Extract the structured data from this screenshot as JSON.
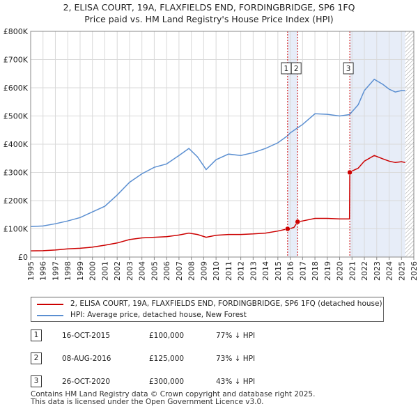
{
  "title_line1": "2, ELISA COURT, 19A, FLAXFIELDS END, FORDINGBRIDGE, SP6 1FQ",
  "title_line2": "Price paid vs. HM Land Registry's House Price Index (HPI)",
  "chart_data": {
    "type": "line",
    "title": "2, ELISA COURT, 19A, FLAXFIELDS END, FORDINGBRIDGE, SP6 1FQ - Price paid vs. HM Land Registry's House Price Index (HPI)",
    "xlim": [
      1995,
      2026
    ],
    "ylim": [
      0,
      800000
    ],
    "x_ticks": [
      "1995",
      "1996",
      "1997",
      "1998",
      "1999",
      "2000",
      "2001",
      "2002",
      "2003",
      "2004",
      "2005",
      "2006",
      "2007",
      "2008",
      "2009",
      "2010",
      "2011",
      "2012",
      "2013",
      "2014",
      "2015",
      "2016",
      "2017",
      "2018",
      "2019",
      "2020",
      "2021",
      "2022",
      "2023",
      "2024",
      "2025",
      "2026"
    ],
    "y_ticks": [
      {
        "value": 0,
        "label": "£0"
      },
      {
        "value": 100000,
        "label": "£100K"
      },
      {
        "value": 200000,
        "label": "£200K"
      },
      {
        "value": 300000,
        "label": "£300K"
      },
      {
        "value": 400000,
        "label": "£400K"
      },
      {
        "value": 500000,
        "label": "£500K"
      },
      {
        "value": 600000,
        "label": "£600K"
      },
      {
        "value": 700000,
        "label": "£700K"
      },
      {
        "value": 800000,
        "label": "£800K"
      }
    ],
    "series": [
      {
        "name": "2, ELISA COURT, 19A, FLAXFIELDS END, FORDINGBRIDGE, SP6 1FQ (detached house)",
        "color": "#cc0000",
        "points": [
          [
            1995,
            22000
          ],
          [
            1996,
            22500
          ],
          [
            1997,
            25000
          ],
          [
            1998,
            29000
          ],
          [
            1999,
            31000
          ],
          [
            2000,
            35000
          ],
          [
            2001,
            42000
          ],
          [
            2002,
            50000
          ],
          [
            2003,
            62000
          ],
          [
            2004,
            68000
          ],
          [
            2005,
            70000
          ],
          [
            2006,
            72000
          ],
          [
            2007,
            78000
          ],
          [
            2007.8,
            85000
          ],
          [
            2008.5,
            80000
          ],
          [
            2009.2,
            70000
          ],
          [
            2010,
            77000
          ],
          [
            2011,
            80000
          ],
          [
            2012,
            80000
          ],
          [
            2013,
            82000
          ],
          [
            2014,
            85000
          ],
          [
            2015,
            92000
          ],
          [
            2015.79,
            100000
          ],
          [
            2016.0,
            101000
          ],
          [
            2016.3,
            105000
          ],
          [
            2016.6,
            125000
          ],
          [
            2017,
            128000
          ],
          [
            2018,
            137000
          ],
          [
            2019,
            137000
          ],
          [
            2020,
            135000
          ],
          [
            2020.8,
            135000
          ],
          [
            2020.82,
            300000
          ],
          [
            2021,
            305000
          ],
          [
            2021.5,
            315000
          ],
          [
            2022,
            340000
          ],
          [
            2022.8,
            360000
          ],
          [
            2023.5,
            348000
          ],
          [
            2024,
            340000
          ],
          [
            2024.5,
            335000
          ],
          [
            2025,
            338000
          ],
          [
            2025.3,
            335000
          ]
        ]
      },
      {
        "name": "HPI: Average price, detached house, New Forest",
        "color": "#5b8fd1",
        "points": [
          [
            1995,
            108000
          ],
          [
            1996,
            110000
          ],
          [
            1997,
            118000
          ],
          [
            1998,
            128000
          ],
          [
            1999,
            140000
          ],
          [
            2000,
            160000
          ],
          [
            2001,
            180000
          ],
          [
            2002,
            220000
          ],
          [
            2003,
            265000
          ],
          [
            2004,
            295000
          ],
          [
            2005,
            318000
          ],
          [
            2006,
            330000
          ],
          [
            2007,
            360000
          ],
          [
            2007.8,
            385000
          ],
          [
            2008.5,
            355000
          ],
          [
            2009.2,
            310000
          ],
          [
            2010,
            345000
          ],
          [
            2011,
            365000
          ],
          [
            2012,
            360000
          ],
          [
            2013,
            370000
          ],
          [
            2014,
            385000
          ],
          [
            2015,
            405000
          ],
          [
            2015.79,
            430000
          ],
          [
            2016,
            440000
          ],
          [
            2016.6,
            458000
          ],
          [
            2017,
            470000
          ],
          [
            2018,
            508000
          ],
          [
            2019,
            506000
          ],
          [
            2020,
            500000
          ],
          [
            2020.8,
            505000
          ],
          [
            2021,
            515000
          ],
          [
            2021.5,
            540000
          ],
          [
            2022,
            590000
          ],
          [
            2022.8,
            630000
          ],
          [
            2023.5,
            612000
          ],
          [
            2024,
            595000
          ],
          [
            2024.5,
            585000
          ],
          [
            2025,
            590000
          ],
          [
            2025.3,
            590000
          ]
        ]
      }
    ],
    "transactions": [
      {
        "n": "1",
        "x": 2015.79,
        "price": 100000
      },
      {
        "n": "2",
        "x": 2016.6,
        "price": 125000
      },
      {
        "n": "3",
        "x": 2020.82,
        "price": 300000
      }
    ],
    "shaded_spans": [
      [
        2015.79,
        2016.6
      ],
      [
        2020.82,
        2025.3
      ]
    ],
    "hatched_from": 2025.3
  },
  "legend": {
    "red_label": "2, ELISA COURT, 19A, FLAXFIELDS END, FORDINGBRIDGE, SP6 1FQ (detached house)",
    "blue_label": "HPI: Average price, detached house, New Forest"
  },
  "sales": [
    {
      "n": "1",
      "date": "16-OCT-2015",
      "price": "£100,000",
      "hpi": "77% ↓ HPI"
    },
    {
      "n": "2",
      "date": "08-AUG-2016",
      "price": "£125,000",
      "hpi": "73% ↓ HPI"
    },
    {
      "n": "3",
      "date": "26-OCT-2020",
      "price": "£300,000",
      "hpi": "43% ↓ HPI"
    }
  ],
  "footer_line1": "Contains HM Land Registry data © Crown copyright and database right 2025.",
  "footer_line2": "This data is licensed under the Open Government Licence v3.0."
}
